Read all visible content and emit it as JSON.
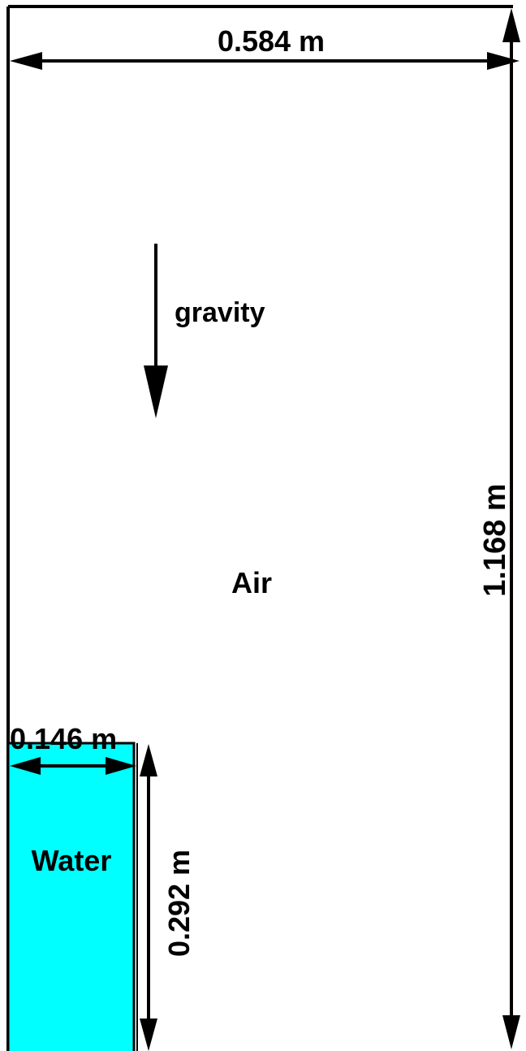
{
  "labels": {
    "width": "0.584 m",
    "height": "1.168 m",
    "water_width": "0.146 m",
    "water_height": "0.292 m",
    "gravity": "gravity",
    "air": "Air",
    "water": "Water"
  }
}
